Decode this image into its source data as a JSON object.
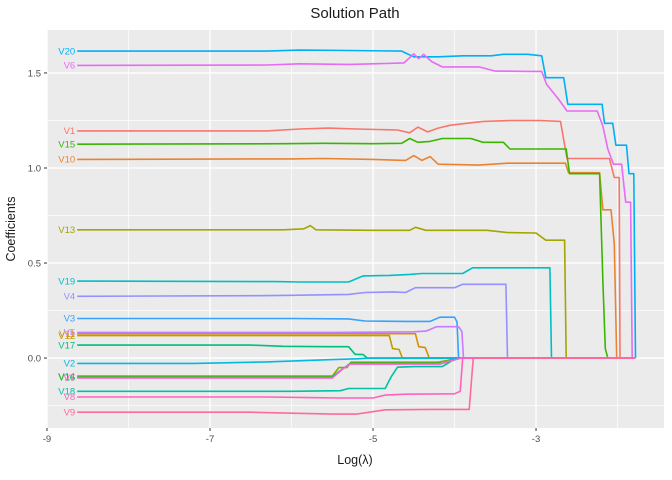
{
  "title": "Solution Path",
  "axes": {
    "x_label": "Log(λ)",
    "y_label": "Coefficients"
  },
  "chart_data": {
    "type": "line",
    "title": "Solution Path",
    "xlabel": "Log(λ)",
    "ylabel": "Coefficients",
    "xlim": [
      -9.0,
      -1.43
    ],
    "ylim": [
      -0.368,
      1.726
    ],
    "x_major_ticks": [
      -9,
      -7,
      -5,
      -3
    ],
    "x_tick_labels": [
      "-9",
      "-7",
      "-5",
      "-3"
    ],
    "x_minor_ticks": [
      -8,
      -6,
      -4,
      -2
    ],
    "y_major_ticks": [
      0.0,
      0.5,
      1.0,
      1.5
    ],
    "y_tick_labels": [
      "0.0",
      "0.5",
      "1.0",
      "1.5"
    ],
    "y_minor_ticks": [
      -0.25,
      0.25,
      0.75,
      1.25
    ],
    "panel_bg": "#EBEBEB",
    "grid_color": "#FFFFFF",
    "tick_color": "#333333",
    "legend": "none",
    "grid": "on",
    "series": [
      {
        "name": "V1",
        "color": "#F8766D",
        "points": [
          [
            -8.63,
            1.195
          ],
          [
            -6.3,
            1.195
          ],
          [
            -5.9,
            1.205
          ],
          [
            -5.55,
            1.21
          ],
          [
            -5.2,
            1.205
          ],
          [
            -4.7,
            1.2
          ],
          [
            -4.55,
            1.185
          ],
          [
            -4.45,
            1.215
          ],
          [
            -4.33,
            1.19
          ],
          [
            -4.2,
            1.21
          ],
          [
            -4.05,
            1.225
          ],
          [
            -3.65,
            1.245
          ],
          [
            -3.3,
            1.25
          ],
          [
            -2.95,
            1.25
          ],
          [
            -2.7,
            1.245
          ],
          [
            -2.62,
            1.05
          ],
          [
            -2.35,
            1.05
          ],
          [
            -2.1,
            1.05
          ],
          [
            -2.04,
            0.95
          ],
          [
            -1.98,
            0.95
          ],
          [
            -1.97,
            0
          ],
          [
            -1.78,
            0
          ]
        ]
      },
      {
        "name": "V10",
        "color": "#EA8331",
        "points": [
          [
            -8.63,
            1.045
          ],
          [
            -6.0,
            1.048
          ],
          [
            -5.6,
            1.05
          ],
          [
            -5.0,
            1.045
          ],
          [
            -4.6,
            1.04
          ],
          [
            -4.5,
            1.065
          ],
          [
            -4.4,
            1.04
          ],
          [
            -4.3,
            1.06
          ],
          [
            -4.2,
            1.02
          ],
          [
            -3.7,
            1.015
          ],
          [
            -3.35,
            1.025
          ],
          [
            -2.95,
            1.025
          ],
          [
            -2.64,
            1.025
          ],
          [
            -2.6,
            0.975
          ],
          [
            -2.22,
            0.975
          ],
          [
            -2.18,
            0.78
          ],
          [
            -2.08,
            0.78
          ],
          [
            -2.04,
            0.6
          ],
          [
            -2.01,
            0
          ],
          [
            -1.78,
            0
          ]
        ]
      },
      {
        "name": "V11",
        "color": "#D89000",
        "points": [
          [
            -8.63,
            0.128
          ],
          [
            -5.5,
            0.128
          ],
          [
            -4.48,
            0.128
          ],
          [
            -4.44,
            0.06
          ],
          [
            -4.36,
            0.055
          ],
          [
            -4.31,
            0
          ],
          [
            -1.78,
            0
          ]
        ]
      },
      {
        "name": "V12",
        "color": "#C09B00",
        "points": [
          [
            -8.63,
            0.118
          ],
          [
            -5.5,
            0.118
          ],
          [
            -4.8,
            0.118
          ],
          [
            -4.76,
            0.05
          ],
          [
            -4.68,
            0.045
          ],
          [
            -4.64,
            0
          ],
          [
            -1.78,
            0
          ]
        ]
      },
      {
        "name": "V13",
        "color": "#A3A500",
        "points": [
          [
            -8.63,
            0.675
          ],
          [
            -6.1,
            0.675
          ],
          [
            -5.85,
            0.68
          ],
          [
            -5.77,
            0.697
          ],
          [
            -5.7,
            0.675
          ],
          [
            -5.0,
            0.672
          ],
          [
            -4.55,
            0.672
          ],
          [
            -4.48,
            0.688
          ],
          [
            -4.35,
            0.672
          ],
          [
            -3.6,
            0.672
          ],
          [
            -3.35,
            0.66
          ],
          [
            -3.0,
            0.658
          ],
          [
            -2.88,
            0.62
          ],
          [
            -2.65,
            0.62
          ],
          [
            -2.63,
            0
          ],
          [
            -1.78,
            0
          ]
        ]
      },
      {
        "name": "V14",
        "color": "#7CAE00",
        "points": [
          [
            -8.63,
            -0.095
          ],
          [
            -5.5,
            -0.095
          ],
          [
            -5.42,
            -0.05
          ],
          [
            -5.32,
            -0.05
          ],
          [
            -5.27,
            -0.022
          ],
          [
            -4.6,
            -0.022
          ],
          [
            -4.2,
            -0.022
          ],
          [
            -4.08,
            -0.012
          ],
          [
            -3.96,
            0
          ],
          [
            -1.78,
            0
          ]
        ]
      },
      {
        "name": "V15",
        "color": "#39B600",
        "points": [
          [
            -8.63,
            1.125
          ],
          [
            -6.1,
            1.128
          ],
          [
            -5.6,
            1.13
          ],
          [
            -5.0,
            1.128
          ],
          [
            -4.65,
            1.13
          ],
          [
            -4.55,
            1.155
          ],
          [
            -4.45,
            1.135
          ],
          [
            -4.3,
            1.14
          ],
          [
            -4.15,
            1.155
          ],
          [
            -3.8,
            1.155
          ],
          [
            -3.65,
            1.135
          ],
          [
            -3.4,
            1.135
          ],
          [
            -3.32,
            1.1
          ],
          [
            -2.85,
            1.1
          ],
          [
            -2.63,
            1.1
          ],
          [
            -2.59,
            0.97
          ],
          [
            -2.22,
            0.97
          ],
          [
            -2.18,
            0.4
          ],
          [
            -2.15,
            0.05
          ],
          [
            -2.12,
            0
          ],
          [
            -1.78,
            0
          ]
        ]
      },
      {
        "name": "V16",
        "color": "#00BB4E",
        "points": [
          [
            -8.63,
            -0.102
          ],
          [
            -5.5,
            -0.102
          ],
          [
            -5.43,
            -0.075
          ],
          [
            -5.35,
            -0.05
          ],
          [
            -5.28,
            -0.028
          ],
          [
            -4.6,
            -0.028
          ],
          [
            -4.15,
            -0.028
          ],
          [
            -4.02,
            -0.012
          ],
          [
            -3.93,
            0
          ],
          [
            -1.78,
            0
          ]
        ]
      },
      {
        "name": "V17",
        "color": "#00BF7D",
        "points": [
          [
            -8.63,
            0.068
          ],
          [
            -6.5,
            0.068
          ],
          [
            -6.1,
            0.062
          ],
          [
            -5.55,
            0.06
          ],
          [
            -5.3,
            0.06
          ],
          [
            -5.22,
            0.02
          ],
          [
            -5.12,
            0.018
          ],
          [
            -5.07,
            0
          ],
          [
            -1.78,
            0
          ]
        ]
      },
      {
        "name": "V18",
        "color": "#00C1A3",
        "points": [
          [
            -8.63,
            -0.175
          ],
          [
            -6.0,
            -0.175
          ],
          [
            -5.4,
            -0.172
          ],
          [
            -5.3,
            -0.16
          ],
          [
            -4.85,
            -0.16
          ],
          [
            -4.78,
            -0.1
          ],
          [
            -4.7,
            -0.048
          ],
          [
            -4.5,
            -0.045
          ],
          [
            -4.15,
            -0.045
          ],
          [
            -4.06,
            -0.022
          ],
          [
            -3.99,
            0
          ],
          [
            -1.78,
            0
          ]
        ]
      },
      {
        "name": "V19",
        "color": "#00BFC4",
        "points": [
          [
            -8.63,
            0.405
          ],
          [
            -6.2,
            0.402
          ],
          [
            -5.9,
            0.4
          ],
          [
            -5.3,
            0.4
          ],
          [
            -5.12,
            0.432
          ],
          [
            -4.8,
            0.435
          ],
          [
            -4.55,
            0.44
          ],
          [
            -4.4,
            0.445
          ],
          [
            -3.9,
            0.445
          ],
          [
            -3.78,
            0.475
          ],
          [
            -3.3,
            0.475
          ],
          [
            -2.95,
            0.475
          ],
          [
            -2.83,
            0.475
          ],
          [
            -2.81,
            0
          ],
          [
            -1.78,
            0
          ]
        ]
      },
      {
        "name": "V2",
        "color": "#00BAE0",
        "points": [
          [
            -8.63,
            -0.028
          ],
          [
            -7.2,
            -0.028
          ],
          [
            -6.3,
            -0.02
          ],
          [
            -5.5,
            -0.008
          ],
          [
            -5.2,
            -0.004
          ],
          [
            -5.02,
            0
          ],
          [
            -1.78,
            0
          ]
        ]
      },
      {
        "name": "V20",
        "color": "#00B0F6",
        "points": [
          [
            -8.63,
            1.615
          ],
          [
            -6.3,
            1.615
          ],
          [
            -5.9,
            1.62
          ],
          [
            -5.3,
            1.618
          ],
          [
            -4.65,
            1.615
          ],
          [
            -4.5,
            1.585
          ],
          [
            -4.2,
            1.585
          ],
          [
            -3.9,
            1.59
          ],
          [
            -3.55,
            1.59
          ],
          [
            -3.4,
            1.598
          ],
          [
            -3.1,
            1.598
          ],
          [
            -2.93,
            1.59
          ],
          [
            -2.88,
            1.475
          ],
          [
            -2.66,
            1.475
          ],
          [
            -2.61,
            1.335
          ],
          [
            -2.3,
            1.335
          ],
          [
            -2.19,
            1.335
          ],
          [
            -2.16,
            1.235
          ],
          [
            -2.06,
            1.235
          ],
          [
            -2.02,
            1.12
          ],
          [
            -1.89,
            1.12
          ],
          [
            -1.86,
            0.97
          ],
          [
            -1.8,
            0.97
          ],
          [
            -1.78,
            0
          ]
        ]
      },
      {
        "name": "V3",
        "color": "#35A2FF",
        "points": [
          [
            -8.63,
            0.208
          ],
          [
            -6.0,
            0.208
          ],
          [
            -5.3,
            0.206
          ],
          [
            -5.1,
            0.195
          ],
          [
            -4.6,
            0.193
          ],
          [
            -4.3,
            0.193
          ],
          [
            -4.18,
            0.215
          ],
          [
            -4.0,
            0.215
          ],
          [
            -3.97,
            0.19
          ],
          [
            -3.95,
            0
          ],
          [
            -1.78,
            0
          ]
        ]
      },
      {
        "name": "V4",
        "color": "#9590FF",
        "points": [
          [
            -8.63,
            0.325
          ],
          [
            -6.4,
            0.328
          ],
          [
            -6.0,
            0.33
          ],
          [
            -5.3,
            0.335
          ],
          [
            -5.1,
            0.345
          ],
          [
            -4.75,
            0.348
          ],
          [
            -4.6,
            0.345
          ],
          [
            -4.48,
            0.37
          ],
          [
            -4.0,
            0.37
          ],
          [
            -3.9,
            0.388
          ],
          [
            -3.55,
            0.388
          ],
          [
            -3.37,
            0.388
          ],
          [
            -3.35,
            0
          ],
          [
            -1.78,
            0
          ]
        ]
      },
      {
        "name": "V5",
        "color": "#C77CFF",
        "points": [
          [
            -8.63,
            0.135
          ],
          [
            -5.5,
            0.135
          ],
          [
            -4.5,
            0.138
          ],
          [
            -4.35,
            0.142
          ],
          [
            -4.22,
            0.165
          ],
          [
            -3.95,
            0.165
          ],
          [
            -3.91,
            0.14
          ],
          [
            -3.89,
            0
          ],
          [
            -1.78,
            0
          ]
        ]
      },
      {
        "name": "V6",
        "color": "#E76BF3",
        "points": [
          [
            -8.63,
            1.54
          ],
          [
            -6.3,
            1.542
          ],
          [
            -5.9,
            1.548
          ],
          [
            -5.3,
            1.545
          ],
          [
            -4.85,
            1.55
          ],
          [
            -4.62,
            1.553
          ],
          [
            -4.5,
            1.6
          ],
          [
            -4.44,
            1.575
          ],
          [
            -4.38,
            1.598
          ],
          [
            -4.28,
            1.56
          ],
          [
            -4.15,
            1.532
          ],
          [
            -3.7,
            1.532
          ],
          [
            -3.5,
            1.51
          ],
          [
            -3.1,
            1.508
          ],
          [
            -2.93,
            1.508
          ],
          [
            -2.87,
            1.44
          ],
          [
            -2.72,
            1.36
          ],
          [
            -2.62,
            1.3
          ],
          [
            -2.35,
            1.3
          ],
          [
            -2.25,
            1.3
          ],
          [
            -2.18,
            1.22
          ],
          [
            -2.12,
            1.1
          ],
          [
            -2.05,
            1.02
          ],
          [
            -1.95,
            1.02
          ],
          [
            -1.9,
            0.82
          ],
          [
            -1.84,
            0.82
          ],
          [
            -1.82,
            0
          ],
          [
            -1.78,
            0
          ]
        ]
      },
      {
        "name": "V7",
        "color": "#FA62DB",
        "points": [
          [
            -8.63,
            -0.105
          ],
          [
            -5.5,
            -0.105
          ],
          [
            -5.38,
            -0.06
          ],
          [
            -5.28,
            -0.032
          ],
          [
            -4.6,
            -0.032
          ],
          [
            -4.18,
            -0.032
          ],
          [
            -4.05,
            -0.015
          ],
          [
            -3.92,
            0
          ],
          [
            -1.78,
            0
          ]
        ]
      },
      {
        "name": "V8",
        "color": "#FF62BC",
        "points": [
          [
            -8.63,
            -0.205
          ],
          [
            -6.3,
            -0.205
          ],
          [
            -5.8,
            -0.208
          ],
          [
            -5.4,
            -0.21
          ],
          [
            -5.0,
            -0.21
          ],
          [
            -4.85,
            -0.195
          ],
          [
            -4.6,
            -0.19
          ],
          [
            -4.0,
            -0.188
          ],
          [
            -3.93,
            -0.175
          ],
          [
            -3.9,
            0
          ],
          [
            -1.78,
            0
          ]
        ]
      },
      {
        "name": "V9",
        "color": "#FF6A98",
        "points": [
          [
            -8.63,
            -0.285
          ],
          [
            -6.5,
            -0.285
          ],
          [
            -6.0,
            -0.29
          ],
          [
            -5.5,
            -0.295
          ],
          [
            -5.2,
            -0.295
          ],
          [
            -4.85,
            -0.272
          ],
          [
            -4.3,
            -0.27
          ],
          [
            -3.82,
            -0.27
          ],
          [
            -3.78,
            -0.05
          ],
          [
            -3.77,
            0
          ],
          [
            -1.78,
            0
          ]
        ]
      }
    ]
  }
}
